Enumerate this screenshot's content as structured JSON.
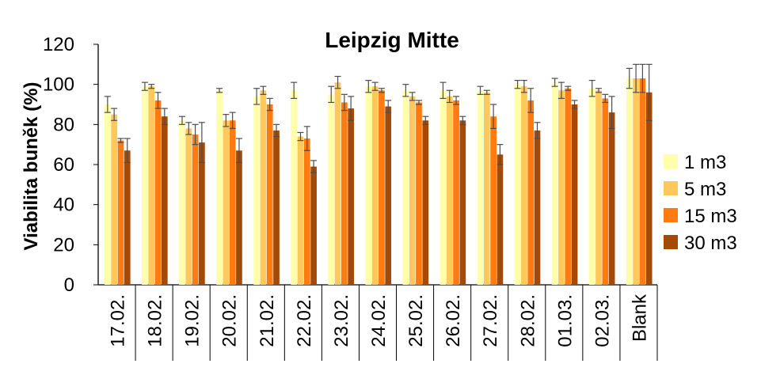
{
  "chart_data": {
    "type": "bar",
    "title": "Leipzig Mitte",
    "xlabel": "",
    "ylabel": "Viabilita buněk (%)",
    "ylim": [
      0,
      120
    ],
    "yticks": [
      0,
      20,
      40,
      60,
      80,
      100,
      120
    ],
    "grid": false,
    "legend_position": "right",
    "categories": [
      "17.02.",
      "18.02.",
      "19.02.",
      "20.02.",
      "21.02.",
      "22.02.",
      "23.02.",
      "24.02.",
      "25.02.",
      "26.02.",
      "27.02.",
      "28.02.",
      "01.03.",
      "02.03.",
      "Blank"
    ],
    "series": [
      {
        "name": "1 m3",
        "color": "#ffffaa",
        "values": [
          90,
          99,
          82,
          97,
          94,
          97,
          95,
          99,
          97,
          97,
          97,
          100,
          101,
          98,
          103
        ],
        "errors": [
          4,
          2,
          2,
          1,
          4,
          4,
          4,
          3,
          3,
          4,
          2,
          2,
          2,
          4,
          5
        ]
      },
      {
        "name": "5 m3",
        "color": "#ffc85a",
        "values": [
          85,
          99,
          78,
          82,
          97,
          74,
          101,
          99,
          94,
          94,
          96,
          99,
          97,
          97,
          103
        ],
        "errors": [
          3,
          1,
          3,
          3,
          2,
          2,
          3,
          2,
          2,
          3,
          1,
          3,
          4,
          1,
          7
        ]
      },
      {
        "name": "15 m3",
        "color": "#ff7a10",
        "values": [
          72,
          92,
          75,
          82,
          90,
          73,
          91,
          97,
          91,
          92,
          84,
          92,
          98,
          93,
          103
        ],
        "errors": [
          1,
          4,
          5,
          4,
          3,
          6,
          4,
          1,
          1,
          2,
          6,
          6,
          1,
          2,
          7
        ]
      },
      {
        "name": "30 m3",
        "color": "#a34a08",
        "values": [
          67,
          84,
          71,
          67,
          77,
          59,
          88,
          89,
          82,
          82,
          65,
          77,
          90,
          86,
          96
        ],
        "errors": [
          6,
          4,
          10,
          6,
          3,
          3,
          6,
          3,
          2,
          2,
          5,
          4,
          2,
          8,
          14
        ]
      }
    ]
  }
}
